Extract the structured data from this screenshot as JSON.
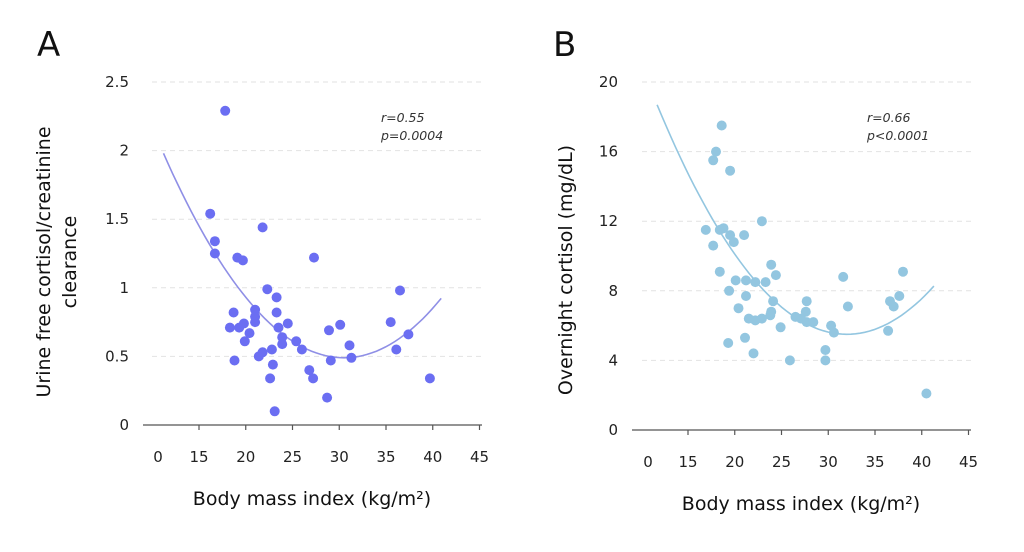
{
  "chart_data": [
    {
      "panel": "A",
      "type": "scatter",
      "title": "",
      "xlabel": "Body mass index (kg/m²)",
      "ylabel": [
        "Urine free cortisol/creatinine",
        "clearance"
      ],
      "x_tick_labels": [
        "0",
        "15",
        "20",
        "25",
        "30",
        "35",
        "40",
        "45"
      ],
      "x_ticks": [
        15,
        20,
        25,
        30,
        35,
        40,
        45
      ],
      "x_axis_break_label": "0",
      "xlim": [
        10.5,
        45
      ],
      "y_tick_labels": [
        "0",
        "0.5",
        "1",
        "1.5",
        "2",
        "2.5"
      ],
      "y_ticks": [
        0,
        0.5,
        1,
        1.5,
        2,
        2.5
      ],
      "ylim": [
        0,
        2.5
      ],
      "grid": "horizontal-dashed",
      "color": "#6b6ef2",
      "fit_color": "#8f8fe6",
      "annotation": [
        "r=0.55",
        "p=0.0004"
      ],
      "fit": {
        "type": "quadratic",
        "a": 0.004,
        "h": 30.5,
        "k": 0.49,
        "x_range": [
          11.2,
          40.9
        ]
      },
      "points": [
        [
          17.8,
          2.29
        ],
        [
          16.2,
          1.54
        ],
        [
          16.7,
          1.34
        ],
        [
          16.7,
          1.25
        ],
        [
          19.1,
          1.22
        ],
        [
          19.7,
          1.2
        ],
        [
          21.8,
          1.44
        ],
        [
          22.3,
          0.99
        ],
        [
          23.3,
          0.93
        ],
        [
          18.7,
          0.82
        ],
        [
          18.3,
          0.71
        ],
        [
          19.3,
          0.71
        ],
        [
          19.8,
          0.74
        ],
        [
          20.4,
          0.67
        ],
        [
          19.9,
          0.61
        ],
        [
          21.0,
          0.84
        ],
        [
          21.0,
          0.79
        ],
        [
          21.0,
          0.75
        ],
        [
          23.3,
          0.82
        ],
        [
          23.5,
          0.71
        ],
        [
          24.5,
          0.74
        ],
        [
          23.9,
          0.64
        ],
        [
          23.9,
          0.59
        ],
        [
          25.4,
          0.61
        ],
        [
          26.0,
          0.55
        ],
        [
          18.8,
          0.47
        ],
        [
          21.4,
          0.5
        ],
        [
          21.8,
          0.53
        ],
        [
          22.8,
          0.55
        ],
        [
          22.9,
          0.44
        ],
        [
          22.6,
          0.34
        ],
        [
          23.1,
          0.1
        ],
        [
          26.8,
          0.4
        ],
        [
          27.2,
          0.34
        ],
        [
          27.3,
          1.22
        ],
        [
          28.7,
          0.2
        ],
        [
          28.9,
          0.69
        ],
        [
          30.1,
          0.73
        ],
        [
          29.1,
          0.47
        ],
        [
          31.1,
          0.58
        ],
        [
          31.3,
          0.49
        ],
        [
          35.5,
          0.75
        ],
        [
          36.1,
          0.55
        ],
        [
          36.5,
          0.98
        ],
        [
          37.4,
          0.66
        ],
        [
          39.7,
          0.34
        ]
      ]
    },
    {
      "panel": "B",
      "type": "scatter",
      "title": "",
      "xlabel": "Body mass index (kg/m²)",
      "ylabel": [
        "Overnight cortisol (mg/dL)"
      ],
      "x_tick_labels": [
        "0",
        "15",
        "20",
        "25",
        "30",
        "35",
        "40",
        "45"
      ],
      "x_ticks": [
        15,
        20,
        25,
        30,
        35,
        40,
        45
      ],
      "x_axis_break_label": "0",
      "xlim": [
        10.5,
        45
      ],
      "y_tick_labels": [
        "0",
        "4",
        "8",
        "12",
        "16",
        "20"
      ],
      "y_ticks": [
        0,
        4,
        8,
        12,
        16,
        20
      ],
      "ylim": [
        0,
        20
      ],
      "grid": "horizontal-dashed",
      "color": "#93c6e0",
      "fit_color": "#93c6e0",
      "annotation": [
        "r=0.66",
        "p<0.0001"
      ],
      "fit": {
        "type": "quadratic",
        "a": 0.032,
        "h": 32,
        "k": 5.5,
        "x_range": [
          11.7,
          41.3
        ]
      },
      "points": [
        [
          18.6,
          17.5
        ],
        [
          18.0,
          16.0
        ],
        [
          17.7,
          15.5
        ],
        [
          19.5,
          14.9
        ],
        [
          16.9,
          11.5
        ],
        [
          18.4,
          11.5
        ],
        [
          18.8,
          11.6
        ],
        [
          19.5,
          11.2
        ],
        [
          19.9,
          10.8
        ],
        [
          17.7,
          10.6
        ],
        [
          21.0,
          11.2
        ],
        [
          22.9,
          12.0
        ],
        [
          23.9,
          9.5
        ],
        [
          18.4,
          9.1
        ],
        [
          20.1,
          8.6
        ],
        [
          21.2,
          8.6
        ],
        [
          22.2,
          8.5
        ],
        [
          23.3,
          8.5
        ],
        [
          24.4,
          8.9
        ],
        [
          19.4,
          8.0
        ],
        [
          21.2,
          7.7
        ],
        [
          24.1,
          7.4
        ],
        [
          23.9,
          6.8
        ],
        [
          20.4,
          7.0
        ],
        [
          22.2,
          6.3
        ],
        [
          23.8,
          6.6
        ],
        [
          21.5,
          6.4
        ],
        [
          22.9,
          6.4
        ],
        [
          24.9,
          5.9
        ],
        [
          27.6,
          6.8
        ],
        [
          27.1,
          6.4
        ],
        [
          26.5,
          6.5
        ],
        [
          27.7,
          7.4
        ],
        [
          27.7,
          6.2
        ],
        [
          28.4,
          6.2
        ],
        [
          19.3,
          5.0
        ],
        [
          21.1,
          5.3
        ],
        [
          22.0,
          4.4
        ],
        [
          25.9,
          4.0
        ],
        [
          31.6,
          8.8
        ],
        [
          32.1,
          7.1
        ],
        [
          30.3,
          6.0
        ],
        [
          30.6,
          5.6
        ],
        [
          29.7,
          4.6
        ],
        [
          29.7,
          4.0
        ],
        [
          36.4,
          5.7
        ],
        [
          36.6,
          7.4
        ],
        [
          37.0,
          7.1
        ],
        [
          37.6,
          7.7
        ],
        [
          38.0,
          9.1
        ],
        [
          40.5,
          2.1
        ]
      ]
    }
  ]
}
